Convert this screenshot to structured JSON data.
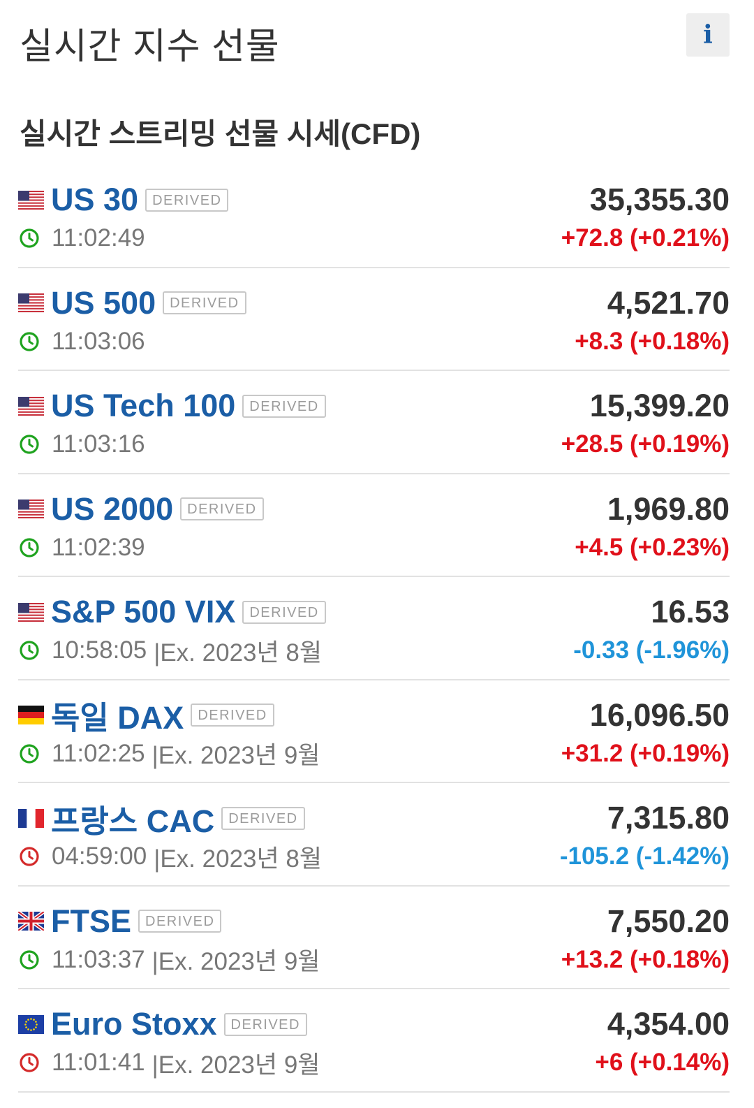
{
  "header": {
    "title": "실시간 지수 선물",
    "info_icon": "info-icon",
    "info_glyph": "i"
  },
  "section": {
    "title": "실시간 스트리밍 선물 시세(CFD)"
  },
  "colors": {
    "link_blue": "#1b5ea6",
    "up_red": "#e0101a",
    "down_blue": "#1f94d9",
    "clock_open_green": "#1fa31f",
    "clock_closed_red": "#d42a2a"
  },
  "quotes": [
    {
      "name": "US 30",
      "badge": "DERIVED",
      "flag": "us-flag-icon",
      "price": "35,355.30",
      "time": "11:02:49",
      "expiry": "",
      "change": "+72.8 (+0.21%)",
      "direction": "up",
      "market_open": true
    },
    {
      "name": "US 500",
      "badge": "DERIVED",
      "flag": "us-flag-icon",
      "price": "4,521.70",
      "time": "11:03:06",
      "expiry": "",
      "change": "+8.3 (+0.18%)",
      "direction": "up",
      "market_open": true
    },
    {
      "name": "US Tech 100",
      "badge": "DERIVED",
      "flag": "us-flag-icon",
      "price": "15,399.20",
      "time": "11:03:16",
      "expiry": "",
      "change": "+28.5 (+0.19%)",
      "direction": "up",
      "market_open": true
    },
    {
      "name": "US 2000",
      "badge": "DERIVED",
      "flag": "us-flag-icon",
      "price": "1,969.80",
      "time": "11:02:39",
      "expiry": "",
      "change": "+4.5 (+0.23%)",
      "direction": "up",
      "market_open": true
    },
    {
      "name": "S&P 500 VIX",
      "badge": "DERIVED",
      "flag": "us-flag-icon",
      "price": "16.53",
      "time": "10:58:05",
      "expiry": "|Ex. 2023년 8월",
      "change": "-0.33 (-1.96%)",
      "direction": "down",
      "market_open": true
    },
    {
      "name": "독일 DAX",
      "badge": "DERIVED",
      "flag": "de-flag-icon",
      "price": "16,096.50",
      "time": "11:02:25",
      "expiry": "|Ex. 2023년 9월",
      "change": "+31.2 (+0.19%)",
      "direction": "up",
      "market_open": true
    },
    {
      "name": "프랑스 CAC",
      "badge": "DERIVED",
      "flag": "fr-flag-icon",
      "price": "7,315.80",
      "time": "04:59:00",
      "expiry": "|Ex. 2023년 8월",
      "change": "-105.2 (-1.42%)",
      "direction": "down",
      "market_open": false
    },
    {
      "name": "FTSE",
      "badge": "DERIVED",
      "flag": "uk-flag-icon",
      "price": "7,550.20",
      "time": "11:03:37",
      "expiry": "|Ex. 2023년 9월",
      "change": "+13.2 (+0.18%)",
      "direction": "up",
      "market_open": true
    },
    {
      "name": "Euro Stoxx",
      "badge": "DERIVED",
      "flag": "eu-flag-icon",
      "price": "4,354.00",
      "time": "11:01:41",
      "expiry": "|Ex. 2023년 9월",
      "change": "+6 (+0.14%)",
      "direction": "up",
      "market_open": false
    }
  ]
}
